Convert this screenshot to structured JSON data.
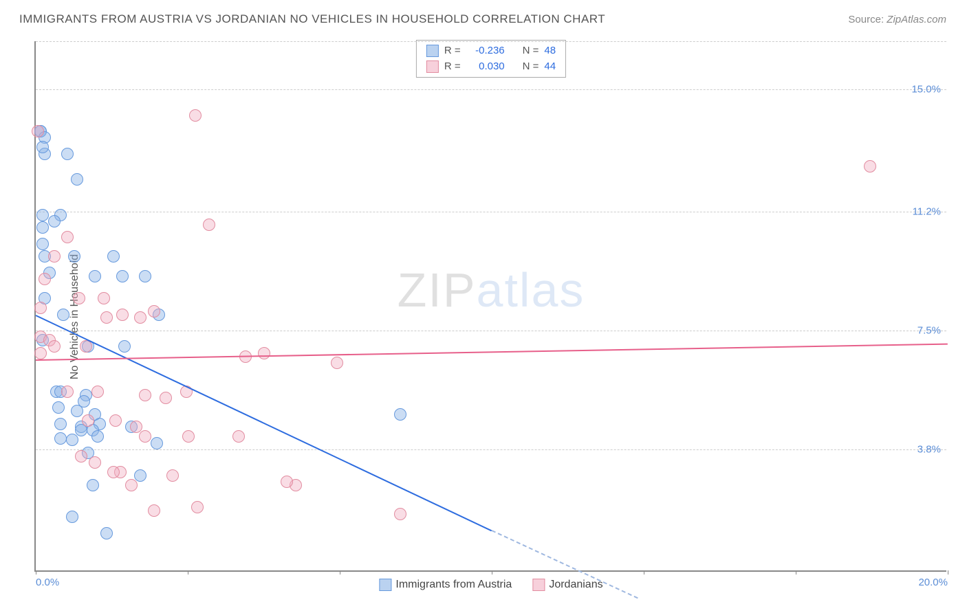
{
  "title": "IMMIGRANTS FROM AUSTRIA VS JORDANIAN NO VEHICLES IN HOUSEHOLD CORRELATION CHART",
  "source_label": "Source:",
  "source_name": "ZipAtlas.com",
  "ylabel": "No Vehicles in Household",
  "watermark_a": "ZIP",
  "watermark_b": "atlas",
  "chart": {
    "type": "scatter",
    "xlim": [
      0,
      20
    ],
    "ylim": [
      0,
      16.5
    ],
    "x_ticks": [
      0,
      20
    ],
    "x_tick_labels": [
      "0.0%",
      "20.0%"
    ],
    "x_minor_ticks": [
      0,
      3.33,
      6.67,
      10,
      13.33,
      16.67,
      20
    ],
    "y_grid": [
      3.8,
      7.5,
      11.2,
      15.0
    ],
    "y_tick_labels": [
      "3.8%",
      "7.5%",
      "11.2%",
      "15.0%"
    ],
    "background_color": "#ffffff",
    "grid_color": "#cccccc",
    "axis_color": "#888888",
    "marker_radius": 9,
    "series": [
      {
        "name": "Immigrants from Austria",
        "key": "blue",
        "stroke": "#6699dd",
        "fill": "rgba(140,180,230,0.45)",
        "trend_color": "#2d6cdf",
        "R": "-0.236",
        "N": "48",
        "trend": {
          "x1": 0,
          "y1": 8.0,
          "x2": 10,
          "y2": 1.3,
          "dash_to_x": 13.2,
          "dash_to_y": -0.8
        },
        "points": [
          [
            0.1,
            13.7
          ],
          [
            0.1,
            13.7
          ],
          [
            0.2,
            13.0
          ],
          [
            0.7,
            13.0
          ],
          [
            0.55,
            11.1
          ],
          [
            0.15,
            11.1
          ],
          [
            0.9,
            12.2
          ],
          [
            0.15,
            10.7
          ],
          [
            0.15,
            10.2
          ],
          [
            0.2,
            9.8
          ],
          [
            0.85,
            9.8
          ],
          [
            1.7,
            9.8
          ],
          [
            0.3,
            9.3
          ],
          [
            1.3,
            9.2
          ],
          [
            2.4,
            9.2
          ],
          [
            0.2,
            8.5
          ],
          [
            0.6,
            8.0
          ],
          [
            2.7,
            8.0
          ],
          [
            0.15,
            7.2
          ],
          [
            1.15,
            7.0
          ],
          [
            1.95,
            7.0
          ],
          [
            0.45,
            5.6
          ],
          [
            0.55,
            5.6
          ],
          [
            1.1,
            5.5
          ],
          [
            0.5,
            5.1
          ],
          [
            0.9,
            5.0
          ],
          [
            1.05,
            5.3
          ],
          [
            1.3,
            4.9
          ],
          [
            1.4,
            4.6
          ],
          [
            0.55,
            4.6
          ],
          [
            1.0,
            4.5
          ],
          [
            1.25,
            4.4
          ],
          [
            2.1,
            4.5
          ],
          [
            0.55,
            4.15
          ],
          [
            0.8,
            4.1
          ],
          [
            1.35,
            4.2
          ],
          [
            1.15,
            3.7
          ],
          [
            8.0,
            4.9
          ],
          [
            0.8,
            1.7
          ],
          [
            1.55,
            1.2
          ],
          [
            2.3,
            3.0
          ],
          [
            2.65,
            4.0
          ],
          [
            1.25,
            2.7
          ],
          [
            0.2,
            13.5
          ],
          [
            0.15,
            13.2
          ],
          [
            0.4,
            10.9
          ],
          [
            1.9,
            9.2
          ],
          [
            1.0,
            4.4
          ]
        ]
      },
      {
        "name": "Jordanians",
        "key": "pink",
        "stroke": "#e28ca0",
        "fill": "rgba(240,170,190,0.4)",
        "trend_color": "#e75f8a",
        "R": "0.030",
        "N": "44",
        "trend": {
          "x1": 0,
          "y1": 6.6,
          "x2": 20,
          "y2": 7.1
        },
        "points": [
          [
            3.5,
            14.2
          ],
          [
            18.3,
            12.6
          ],
          [
            3.8,
            10.8
          ],
          [
            0.7,
            10.4
          ],
          [
            0.4,
            9.8
          ],
          [
            0.2,
            9.1
          ],
          [
            0.95,
            8.5
          ],
          [
            1.5,
            8.5
          ],
          [
            0.1,
            8.2
          ],
          [
            1.55,
            7.9
          ],
          [
            2.3,
            7.9
          ],
          [
            2.6,
            8.1
          ],
          [
            0.1,
            7.3
          ],
          [
            0.3,
            7.2
          ],
          [
            1.1,
            7.0
          ],
          [
            5.0,
            6.8
          ],
          [
            4.6,
            6.7
          ],
          [
            6.6,
            6.5
          ],
          [
            0.7,
            5.6
          ],
          [
            1.35,
            5.6
          ],
          [
            2.4,
            5.5
          ],
          [
            2.85,
            5.4
          ],
          [
            3.3,
            5.6
          ],
          [
            1.15,
            4.7
          ],
          [
            1.75,
            4.7
          ],
          [
            2.2,
            4.5
          ],
          [
            2.4,
            4.2
          ],
          [
            3.35,
            4.2
          ],
          [
            4.45,
            4.2
          ],
          [
            1.0,
            3.6
          ],
          [
            1.3,
            3.4
          ],
          [
            1.85,
            3.1
          ],
          [
            3.0,
            3.0
          ],
          [
            2.6,
            1.9
          ],
          [
            3.55,
            2.0
          ],
          [
            5.7,
            2.7
          ],
          [
            5.5,
            2.8
          ],
          [
            8.0,
            1.8
          ],
          [
            0.1,
            6.8
          ],
          [
            0.05,
            13.7
          ],
          [
            1.7,
            3.1
          ],
          [
            2.1,
            2.7
          ],
          [
            0.4,
            7.0
          ],
          [
            1.9,
            8.0
          ]
        ]
      }
    ]
  },
  "legend_top": {
    "rows": [
      {
        "swatch": "blue",
        "R_label": "R =",
        "R": "-0.236",
        "N_label": "N =",
        "N": "48"
      },
      {
        "swatch": "pink",
        "R_label": "R =",
        "R": "0.030",
        "N_label": "N =",
        "N": "44"
      }
    ]
  },
  "legend_bottom": {
    "items": [
      {
        "swatch": "blue",
        "label": "Immigrants from Austria"
      },
      {
        "swatch": "pink",
        "label": "Jordanians"
      }
    ]
  }
}
